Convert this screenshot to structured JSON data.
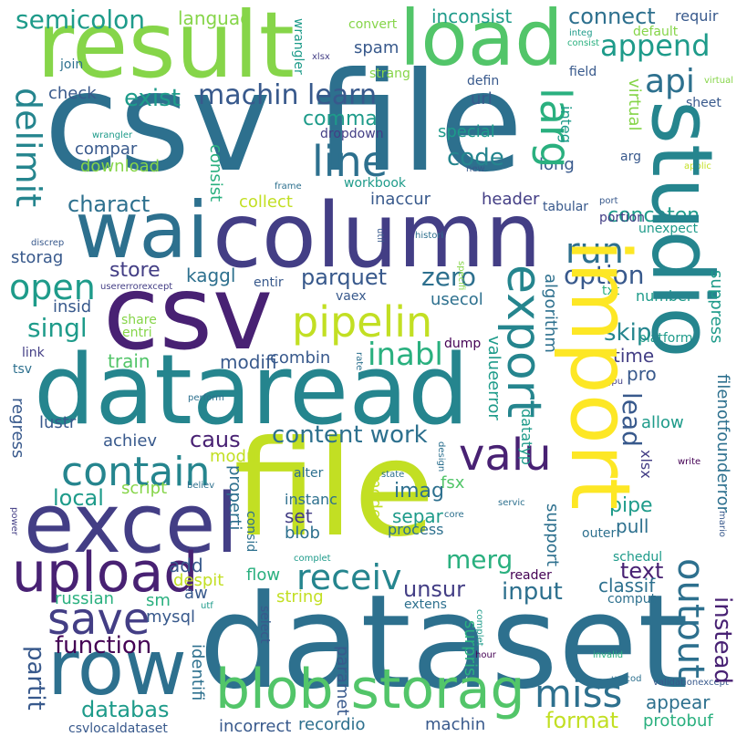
{
  "colors": {
    "background": "#ffffff",
    "palette": [
      "#440154",
      "#482173",
      "#433e85",
      "#38598c",
      "#2d708e",
      "#25858e",
      "#1e9b8a",
      "#2ab07f",
      "#52c569",
      "#86d549",
      "#c2df23",
      "#fde725"
    ]
  },
  "words": [
    {
      "text": "csv file",
      "color": "#2d708e"
    },
    {
      "text": "dataset",
      "color": "#2d708e"
    },
    {
      "text": "file",
      "color": "#c2df23"
    },
    {
      "text": "csv",
      "color": "#482173"
    },
    {
      "text": "dataread",
      "color": "#25858e"
    },
    {
      "text": "column",
      "color": "#433e85"
    },
    {
      "text": "result",
      "color": "#86d549"
    },
    {
      "text": "studio",
      "color": "#25858e"
    },
    {
      "text": "import",
      "color": "#fde725"
    },
    {
      "text": "wai",
      "color": "#2d708e"
    },
    {
      "text": "excel",
      "color": "#433e85"
    },
    {
      "text": "row",
      "color": "#2d708e"
    },
    {
      "text": "load",
      "color": "#52c569"
    },
    {
      "text": "upload",
      "color": "#482173"
    },
    {
      "text": "blob storag",
      "color": "#52c569"
    },
    {
      "text": "export",
      "color": "#25858e"
    },
    {
      "text": "valu",
      "color": "#482173"
    },
    {
      "text": "pipelin",
      "color": "#c2df23"
    },
    {
      "text": "contain",
      "color": "#25858e"
    },
    {
      "text": "line",
      "color": "#2d708e"
    },
    {
      "text": "save",
      "color": "#433e85"
    },
    {
      "text": "receiv",
      "color": "#25858e"
    },
    {
      "text": "miss",
      "color": "#2d708e"
    },
    {
      "text": "output",
      "color": "#2d708e"
    },
    {
      "text": "semicolon",
      "color": "#1e9b8a"
    },
    {
      "text": "append",
      "color": "#1e9b8a"
    },
    {
      "text": "api",
      "color": "#2d708e"
    },
    {
      "text": "machin learn",
      "color": "#38598c"
    },
    {
      "text": "exist",
      "color": "#1e9b8a"
    },
    {
      "text": "larg",
      "color": "#2ab07f"
    },
    {
      "text": "delimit",
      "color": "#25858e"
    },
    {
      "text": "run",
      "color": "#2d708e"
    },
    {
      "text": "open",
      "color": "#1e9b8a"
    },
    {
      "text": "code",
      "color": "#25858e"
    },
    {
      "text": "connect",
      "color": "#2d708e"
    },
    {
      "text": "inconsist",
      "color": "#1e9b8a"
    },
    {
      "text": "languag",
      "color": "#86d549"
    },
    {
      "text": "requir",
      "color": "#38598c"
    },
    {
      "text": "default",
      "color": "#86d549"
    },
    {
      "text": "convert",
      "color": "#86d549"
    },
    {
      "text": "charact",
      "color": "#2d708e"
    },
    {
      "text": "concaten",
      "color": "#1e9b8a"
    },
    {
      "text": "option",
      "color": "#38598c"
    },
    {
      "text": "store",
      "color": "#433e85"
    },
    {
      "text": "parquet",
      "color": "#38598c"
    },
    {
      "text": "zero",
      "color": "#2d708e"
    },
    {
      "text": "kaggl",
      "color": "#2d708e"
    },
    {
      "text": "singl",
      "color": "#1e9b8a"
    },
    {
      "text": "inabl",
      "color": "#2ab07f"
    },
    {
      "text": "comma",
      "color": "#1e9b8a"
    },
    {
      "text": "check",
      "color": "#38598c"
    },
    {
      "text": "compar",
      "color": "#38598c"
    },
    {
      "text": "download",
      "color": "#86d549"
    },
    {
      "text": "storag",
      "color": "#38598c"
    },
    {
      "text": "insid",
      "color": "#38598c"
    },
    {
      "text": "train",
      "color": "#52c569"
    },
    {
      "text": "modifi",
      "color": "#38598c"
    },
    {
      "text": "combin",
      "color": "#38598c"
    },
    {
      "text": "caus",
      "color": "#482173"
    },
    {
      "text": "content work",
      "color": "#2d708e"
    },
    {
      "text": "lead",
      "color": "#38598c"
    },
    {
      "text": "allow",
      "color": "#1e9b8a"
    },
    {
      "text": "skip",
      "color": "#25858e"
    },
    {
      "text": "time",
      "color": "#433e85"
    },
    {
      "text": "pro",
      "color": "#38598c"
    },
    {
      "text": "function",
      "color": "#440154"
    },
    {
      "text": "local",
      "color": "#1e9b8a"
    },
    {
      "text": "partit",
      "color": "#38598c"
    },
    {
      "text": "databas",
      "color": "#1e9b8a"
    },
    {
      "text": "merg",
      "color": "#2ab07f"
    },
    {
      "text": "input",
      "color": "#2d708e"
    },
    {
      "text": "unsur",
      "color": "#433e85"
    },
    {
      "text": "appear",
      "color": "#2d708e"
    },
    {
      "text": "format",
      "color": "#c2df23"
    },
    {
      "text": "instead",
      "color": "#482173"
    },
    {
      "text": "text",
      "color": "#482173"
    },
    {
      "text": "classif",
      "color": "#2d708e"
    },
    {
      "text": "pipe",
      "color": "#1e9b8a"
    },
    {
      "text": "pull",
      "color": "#2d708e"
    },
    {
      "text": "add",
      "color": "#38598c"
    },
    {
      "text": "sm",
      "color": "#2ab07f"
    },
    {
      "text": "aw",
      "color": "#38598c"
    },
    {
      "text": "mysql",
      "color": "#38598c"
    },
    {
      "text": "russian",
      "color": "#2ab07f"
    },
    {
      "text": "despit",
      "color": "#c2df23"
    },
    {
      "text": "flow",
      "color": "#2ab07f"
    },
    {
      "text": "string",
      "color": "#c2df23"
    },
    {
      "text": "script",
      "color": "#86d549"
    },
    {
      "text": "imag",
      "color": "#2d708e"
    },
    {
      "text": "set",
      "color": "#433e85"
    },
    {
      "text": "blob",
      "color": "#2d708e"
    },
    {
      "text": "separ",
      "color": "#1e9b8a"
    },
    {
      "text": "process",
      "color": "#2d708e"
    },
    {
      "text": "fsx",
      "color": "#52c569"
    },
    {
      "text": "recordio",
      "color": "#2d708e"
    },
    {
      "text": "machin",
      "color": "#38598c"
    },
    {
      "text": "incorrect",
      "color": "#38598c"
    },
    {
      "text": "protobuf",
      "color": "#2ab07f"
    },
    {
      "text": "csvlocaldataset",
      "color": "#38598c"
    },
    {
      "text": "achiev",
      "color": "#38598c"
    },
    {
      "text": "lustr",
      "color": "#38598c"
    },
    {
      "text": "dump",
      "color": "#440154"
    },
    {
      "text": "header",
      "color": "#433e85"
    },
    {
      "text": "inaccur",
      "color": "#38598c"
    },
    {
      "text": "usecol",
      "color": "#2d708e"
    },
    {
      "text": "vaex",
      "color": "#38598c"
    },
    {
      "text": "entir",
      "color": "#38598c"
    },
    {
      "text": "collect",
      "color": "#c2df23"
    },
    {
      "text": "tabular",
      "color": "#38598c"
    },
    {
      "text": "long",
      "color": "#38598c"
    },
    {
      "text": "special",
      "color": "#1e9b8a"
    },
    {
      "text": "url",
      "color": "#38598c"
    },
    {
      "text": "defin",
      "color": "#38598c"
    },
    {
      "text": "field",
      "color": "#38598c"
    },
    {
      "text": "sheet",
      "color": "#38598c"
    },
    {
      "text": "arg",
      "color": "#38598c"
    },
    {
      "text": "spam",
      "color": "#38598c"
    },
    {
      "text": "strang",
      "color": "#86d549"
    },
    {
      "text": "join",
      "color": "#2d708e"
    },
    {
      "text": "dropdown",
      "color": "#433e85"
    },
    {
      "text": "workbook",
      "color": "#1e9b8a"
    },
    {
      "text": "number",
      "color": "#1e9b8a"
    },
    {
      "text": "txt",
      "color": "#2ab07f"
    },
    {
      "text": "platform",
      "color": "#1e9b8a"
    },
    {
      "text": "portion",
      "color": "#433e85"
    },
    {
      "text": "unexpect",
      "color": "#1e9b8a"
    },
    {
      "text": "link",
      "color": "#433e85"
    },
    {
      "text": "tsv",
      "color": "#2d708e"
    },
    {
      "text": "share",
      "color": "#86d549"
    },
    {
      "text": "entri",
      "color": "#86d549"
    },
    {
      "text": "regress",
      "color": "#38598c"
    },
    {
      "text": "modul",
      "color": "#c2df23"
    },
    {
      "text": "alter",
      "color": "#2d708e"
    },
    {
      "text": "instanc",
      "color": "#2d708e"
    },
    {
      "text": "reader",
      "color": "#440154"
    },
    {
      "text": "extens",
      "color": "#2d708e"
    },
    {
      "text": "outer",
      "color": "#2d708e"
    },
    {
      "text": "schedul",
      "color": "#1e9b8a"
    },
    {
      "text": "comput",
      "color": "#2d708e"
    },
    {
      "text": "select",
      "color": "#38598c"
    },
    {
      "text": "paramet",
      "color": "#38598c"
    },
    {
      "text": "surpris",
      "color": "#2ab07f"
    },
    {
      "text": "identifi",
      "color": "#2d708e"
    },
    {
      "text": "properti",
      "color": "#2d708e"
    },
    {
      "text": "consid",
      "color": "#2d708e"
    },
    {
      "text": "mode",
      "color": "#c2df23"
    },
    {
      "text": "support",
      "color": "#2d708e"
    },
    {
      "text": "algorithm",
      "color": "#2d708e"
    },
    {
      "text": "datatyp",
      "color": "#1e9b8a"
    },
    {
      "text": "valueerror",
      "color": "#1e9b8a"
    },
    {
      "text": "filenotfounderror",
      "color": "#2d708e"
    },
    {
      "text": "suppress",
      "color": "#1e9b8a"
    },
    {
      "text": "xlsx",
      "color": "#433e85"
    },
    {
      "text": "consist",
      "color": "#2ab07f"
    },
    {
      "text": "integ",
      "color": "#1e9b8a"
    },
    {
      "text": "virtual",
      "color": "#86d549"
    },
    {
      "text": "wrangler",
      "color": "#1e9b8a"
    },
    {
      "text": "new",
      "color": "#38598c"
    },
    {
      "text": "applic",
      "color": "#c2df23"
    },
    {
      "text": "frame",
      "color": "#2d708e"
    },
    {
      "text": "port",
      "color": "#38598c"
    },
    {
      "text": "consol",
      "color": "#2d708e"
    },
    {
      "text": "histori",
      "color": "#2d708e"
    },
    {
      "text": "discrep",
      "color": "#38598c"
    },
    {
      "text": "specifi",
      "color": "#86d549"
    },
    {
      "text": "usererrorexcept",
      "color": "#433e85"
    },
    {
      "text": "rate",
      "color": "#2d708e"
    },
    {
      "text": "gpu",
      "color": "#433e85"
    },
    {
      "text": "perform",
      "color": "#2d708e"
    },
    {
      "text": "util",
      "color": "#38598c"
    },
    {
      "text": "state",
      "color": "#2d708e"
    },
    {
      "text": "write",
      "color": "#440154"
    },
    {
      "text": "believ",
      "color": "#2d708e"
    },
    {
      "text": "servic",
      "color": "#2d708e"
    },
    {
      "text": "core",
      "color": "#2d708e"
    },
    {
      "text": "design",
      "color": "#2d708e"
    },
    {
      "text": "utf",
      "color": "#1e9b8a"
    },
    {
      "text": "complet",
      "color": "#1e9b8a"
    },
    {
      "text": "hour",
      "color": "#440154"
    },
    {
      "text": "power",
      "color": "#433e85"
    },
    {
      "text": "invalid",
      "color": "#2ab07f"
    },
    {
      "text": "unicod",
      "color": "#2d708e"
    },
    {
      "text": "validationexcept",
      "color": "#38598c"
    },
    {
      "text": "mario",
      "color": "#38598c"
    },
    {
      "text": "net",
      "color": "#c2df23"
    },
    {
      "text": "visual",
      "color": "#433e85"
    },
    {
      "text": "creat",
      "color": "#86d549"
    },
    {
      "text": "usag",
      "color": "#2d708e"
    },
    {
      "text": "spreadsheet",
      "color": "#1e9b8a"
    }
  ]
}
